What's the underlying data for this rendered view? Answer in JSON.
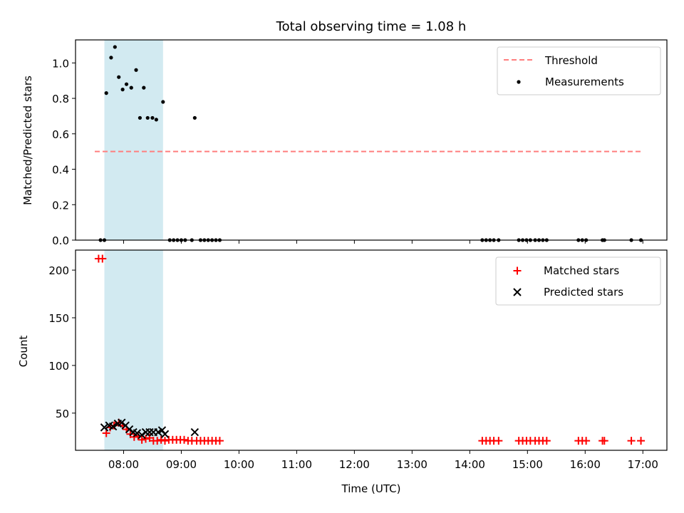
{
  "chart_data": [
    {
      "type": "scatter",
      "title": "Total observing time = 1.08 h",
      "xlabel": "",
      "ylabel": "Matched/Predicted stars",
      "xlim": [
        "07:10",
        "17:25"
      ],
      "ylim": [
        0,
        1.13
      ],
      "yticks": [
        "0.0",
        "0.2",
        "0.4",
        "0.6",
        "0.8",
        "1.0"
      ],
      "yticks_values": [
        0,
        0.2,
        0.4,
        0.6,
        0.8,
        1.0
      ],
      "shaded_interval": [
        "07:40",
        "08:41"
      ],
      "threshold": {
        "value": 0.5,
        "from": "07:30",
        "to": "17:00"
      },
      "legend": {
        "position": "top-right",
        "entries": [
          "Threshold",
          "Measurements"
        ]
      },
      "colors": {
        "threshold": "#ff7f7f",
        "measurements": "#000000",
        "shade": "#add8e6"
      },
      "series": [
        {
          "name": "Measurements",
          "points": [
            [
              "07:36",
              0.0
            ],
            [
              "07:40",
              0.0
            ],
            [
              "07:42",
              0.83
            ],
            [
              "07:47",
              1.03
            ],
            [
              "07:51",
              1.09
            ],
            [
              "07:55",
              0.92
            ],
            [
              "07:59",
              0.85
            ],
            [
              "08:03",
              0.88
            ],
            [
              "08:08",
              0.86
            ],
            [
              "08:13",
              0.96
            ],
            [
              "08:17",
              0.69
            ],
            [
              "08:21",
              0.86
            ],
            [
              "08:25",
              0.69
            ],
            [
              "08:30",
              0.69
            ],
            [
              "08:34",
              0.68
            ],
            [
              "08:41",
              0.78
            ],
            [
              "08:48",
              0.0
            ],
            [
              "08:52",
              0.0
            ],
            [
              "08:56",
              0.0
            ],
            [
              "09:00",
              0.0
            ],
            [
              "09:04",
              0.0
            ],
            [
              "09:11",
              0.0
            ],
            [
              "09:14",
              0.69
            ],
            [
              "09:20",
              0.0
            ],
            [
              "09:24",
              0.0
            ],
            [
              "09:28",
              0.0
            ],
            [
              "09:32",
              0.0
            ],
            [
              "09:36",
              0.0
            ],
            [
              "09:40",
              0.0
            ],
            [
              "14:13",
              0.0
            ],
            [
              "14:17",
              0.0
            ],
            [
              "14:21",
              0.0
            ],
            [
              "14:25",
              0.0
            ],
            [
              "14:30",
              0.0
            ],
            [
              "14:51",
              0.0
            ],
            [
              "14:55",
              0.0
            ],
            [
              "14:59",
              0.0
            ],
            [
              "15:03",
              0.0
            ],
            [
              "15:08",
              0.0
            ],
            [
              "15:12",
              0.0
            ],
            [
              "15:16",
              0.0
            ],
            [
              "15:20",
              0.0
            ],
            [
              "15:53",
              0.0
            ],
            [
              "15:57",
              0.0
            ],
            [
              "16:01",
              0.0
            ],
            [
              "16:18",
              0.0
            ],
            [
              "16:20",
              0.0
            ],
            [
              "16:48",
              0.0
            ],
            [
              "16:58",
              0.0
            ]
          ]
        }
      ]
    },
    {
      "type": "scatter",
      "title": "",
      "xlabel": "Time (UTC)",
      "ylabel": "Count",
      "xlim": [
        "07:10",
        "17:25"
      ],
      "ylim": [
        11,
        221
      ],
      "xticks": [
        "08:00",
        "09:00",
        "10:00",
        "11:00",
        "12:00",
        "13:00",
        "14:00",
        "15:00",
        "16:00",
        "17:00"
      ],
      "yticks": [
        "50",
        "100",
        "150",
        "200"
      ],
      "yticks_values": [
        50,
        100,
        150,
        200
      ],
      "shaded_interval": [
        "07:40",
        "08:41"
      ],
      "legend": {
        "position": "top-right",
        "entries": [
          "Matched stars",
          "Predicted stars"
        ]
      },
      "colors": {
        "matched": "#ff0000",
        "predicted": "#000000",
        "shade": "#add8e6"
      },
      "series": [
        {
          "name": "Matched stars",
          "points": [
            [
              "07:34",
              212
            ],
            [
              "07:38",
              212
            ],
            [
              "07:42",
              29
            ],
            [
              "07:46",
              35
            ],
            [
              "07:50",
              37
            ],
            [
              "07:55",
              40
            ],
            [
              "07:59",
              37
            ],
            [
              "08:03",
              33
            ],
            [
              "08:07",
              28
            ],
            [
              "08:11",
              25
            ],
            [
              "08:15",
              26
            ],
            [
              "08:19",
              22
            ],
            [
              "08:23",
              23
            ],
            [
              "08:27",
              24
            ],
            [
              "08:31",
              21
            ],
            [
              "08:35",
              21
            ],
            [
              "08:39",
              22
            ],
            [
              "08:43",
              21
            ],
            [
              "08:47",
              22
            ],
            [
              "08:51",
              22
            ],
            [
              "08:55",
              22
            ],
            [
              "08:59",
              22
            ],
            [
              "09:03",
              22
            ],
            [
              "09:07",
              21
            ],
            [
              "09:11",
              21
            ],
            [
              "09:16",
              21
            ],
            [
              "09:20",
              21
            ],
            [
              "09:24",
              21
            ],
            [
              "09:28",
              21
            ],
            [
              "09:32",
              21
            ],
            [
              "09:36",
              21
            ],
            [
              "09:40",
              21
            ],
            [
              "14:13",
              21
            ],
            [
              "14:17",
              21
            ],
            [
              "14:21",
              21
            ],
            [
              "14:25",
              21
            ],
            [
              "14:30",
              21
            ],
            [
              "14:51",
              21
            ],
            [
              "14:55",
              21
            ],
            [
              "14:59",
              21
            ],
            [
              "15:03",
              21
            ],
            [
              "15:08",
              21
            ],
            [
              "15:12",
              21
            ],
            [
              "15:16",
              21
            ],
            [
              "15:20",
              21
            ],
            [
              "15:53",
              21
            ],
            [
              "15:57",
              21
            ],
            [
              "16:01",
              21
            ],
            [
              "16:18",
              21
            ],
            [
              "16:20",
              21
            ],
            [
              "16:48",
              21
            ],
            [
              "16:58",
              21
            ]
          ]
        },
        {
          "name": "Predicted stars",
          "points": [
            [
              "07:40",
              35
            ],
            [
              "07:45",
              37
            ],
            [
              "07:49",
              36
            ],
            [
              "07:54",
              39
            ],
            [
              "07:58",
              40
            ],
            [
              "08:02",
              37
            ],
            [
              "08:06",
              33
            ],
            [
              "08:10",
              30
            ],
            [
              "08:14",
              29
            ],
            [
              "08:19",
              27
            ],
            [
              "08:23",
              30
            ],
            [
              "08:27",
              30
            ],
            [
              "08:31",
              30
            ],
            [
              "08:36",
              30
            ],
            [
              "08:40",
              32
            ],
            [
              "08:43",
              28
            ],
            [
              "09:14",
              30
            ]
          ]
        }
      ]
    }
  ]
}
